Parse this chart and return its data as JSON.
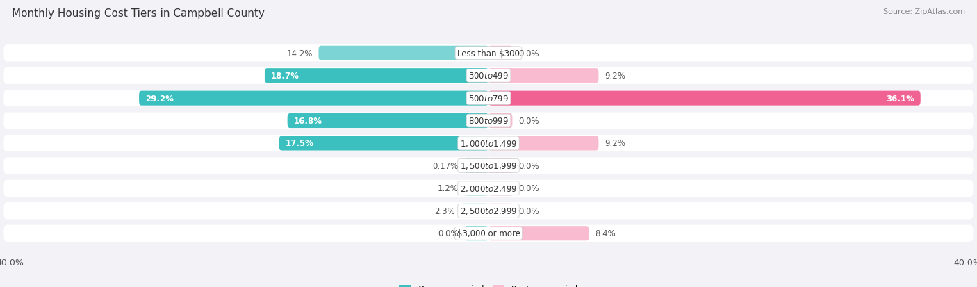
{
  "title": "Monthly Housing Cost Tiers in Campbell County",
  "source": "Source: ZipAtlas.com",
  "categories": [
    "Less than $300",
    "$300 to $499",
    "$500 to $799",
    "$800 to $999",
    "$1,000 to $1,499",
    "$1,500 to $1,999",
    "$2,000 to $2,499",
    "$2,500 to $2,999",
    "$3,000 or more"
  ],
  "owner_values": [
    14.2,
    18.7,
    29.2,
    16.8,
    17.5,
    0.17,
    1.2,
    2.3,
    0.0
  ],
  "renter_values": [
    0.0,
    9.2,
    36.1,
    0.0,
    9.2,
    0.0,
    0.0,
    0.0,
    8.4
  ],
  "owner_color_strong": "#3bbfbf",
  "owner_color_weak": "#7dd4d4",
  "renter_color_strong": "#f06292",
  "renter_color_weak": "#f8bbd0",
  "bg_color": "#f2f2f7",
  "row_bg_color": "#ffffff",
  "axis_max": 40.0,
  "stub_size": 2.0,
  "title_fontsize": 11,
  "label_fontsize": 8.5,
  "cat_fontsize": 8.5,
  "tick_fontsize": 9,
  "source_fontsize": 8,
  "strong_threshold": 15.0
}
